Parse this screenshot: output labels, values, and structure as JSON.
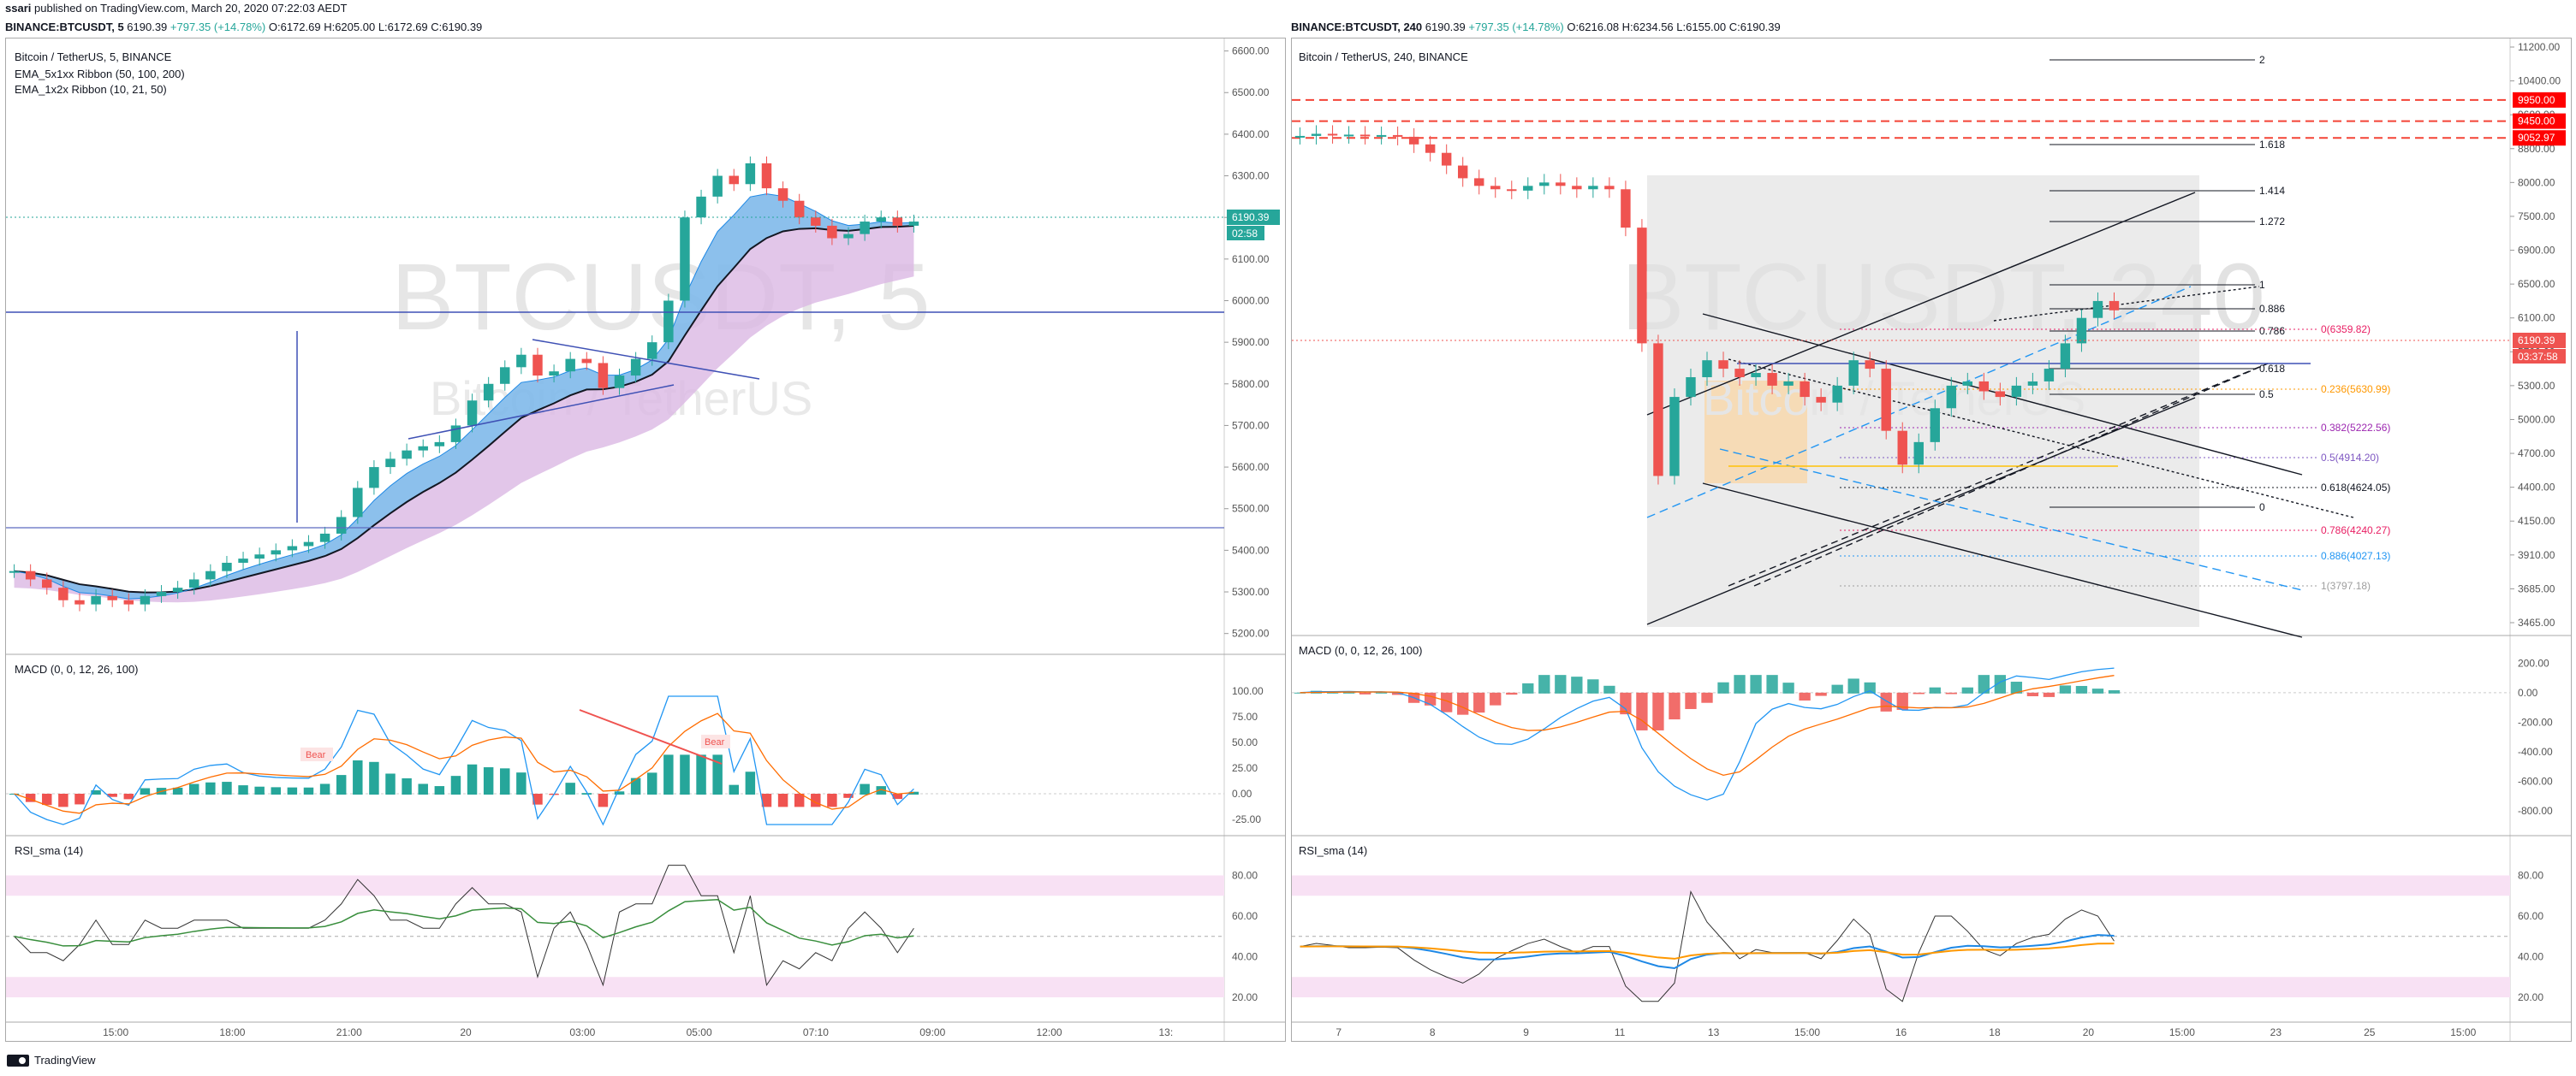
{
  "header": {
    "author": "ssari",
    "published_text": "published on TradingView.com, March 20, 2020 07:22:03 AEDT"
  },
  "left_chart": {
    "symbol_line": {
      "symbol": "BINANCE:BTCUSDT, 5",
      "last": "6190.39",
      "change": "+797.35 (+14.78%)",
      "o": "O:6172.69",
      "h": "H:6205.00",
      "l": "L:6172.69",
      "c": "C:6190.39"
    },
    "pane_title": "Bitcoin / TetherUS, 5, BINANCE",
    "indicators": [
      "EMA_5x1xx Ribbon  (50, 100, 200)",
      "EMA_1x2x Ribbon  (10, 21, 50)"
    ],
    "watermark_main": "BTCUSDT, 5",
    "watermark_sub": "Bitcoin / TetherUS",
    "price_axis": [
      "6600.00",
      "6500.00",
      "6400.00",
      "6300.00",
      "6200.00",
      "6100.00",
      "6000.00",
      "5900.00",
      "5800.00",
      "5700.00",
      "5600.00",
      "5500.00",
      "5400.00",
      "5300.00",
      "5200.00"
    ],
    "price_ylim": [
      5150,
      6630
    ],
    "last_price_label": "6190.39",
    "countdown_label": "02:58",
    "time_axis": [
      "15:00",
      "18:00",
      "21:00",
      "20",
      "03:00",
      "05:00",
      "07:10",
      "09:00",
      "12:00",
      "13:"
    ],
    "macd": {
      "title": "MACD (0, 0, 12, 26, 100)",
      "axis": [
        "100.00",
        "75.00",
        "50.00",
        "25.00",
        "0.00",
        "-25.00"
      ],
      "ylim": [
        -35,
        115
      ],
      "labels": [
        "Bear",
        "Bear"
      ]
    },
    "rsi": {
      "title": "RSI_sma (14)",
      "axis": [
        "80.00",
        "60.00",
        "40.00",
        "20.00"
      ],
      "ylim": [
        12,
        92
      ]
    },
    "price_series": [
      5350,
      5330,
      5310,
      5280,
      5270,
      5290,
      5280,
      5270,
      5290,
      5300,
      5310,
      5330,
      5350,
      5370,
      5380,
      5390,
      5400,
      5410,
      5420,
      5440,
      5480,
      5550,
      5600,
      5620,
      5640,
      5650,
      5660,
      5700,
      5760,
      5800,
      5840,
      5870,
      5820,
      5830,
      5860,
      5850,
      5790,
      5820,
      5860,
      5900,
      6000,
      6200,
      6250,
      6300,
      6280,
      6330,
      6270,
      6240,
      6200,
      6180,
      6150,
      6160,
      6190,
      6200,
      6180,
      6190
    ]
  },
  "right_chart": {
    "symbol_line": {
      "symbol": "BINANCE:BTCUSDT, 240",
      "last": "6190.39",
      "change": "+797.35 (+14.78%)",
      "o": "O:6216.08",
      "h": "H:6234.56",
      "l": "L:6155.00",
      "c": "C:6190.39"
    },
    "pane_title": "Bitcoin / TetherUS, 240, BINANCE",
    "watermark_main": "BTCUSDT, 240",
    "watermark_sub": "Bitcoin / TetherUS",
    "price_axis": [
      "11200.00",
      "10400.00",
      "9600.00",
      "8800.00",
      "8000.00",
      "7500.00",
      "6900.00",
      "6500.00",
      "6100.00",
      "5700.00",
      "5300.00",
      "5000.00",
      "4700.00",
      "4400.00",
      "4150.00",
      "3910.00",
      "3685.00",
      "3465.00"
    ],
    "price_ylim": [
      3400,
      11600
    ],
    "red_levels": [
      {
        "label": "9950.00",
        "value": 9950
      },
      {
        "label": "9450.00",
        "value": 9450
      },
      {
        "label": "9052.97",
        "value": 9052.97
      }
    ],
    "last_price_label": "6190.39",
    "countdown_label": "03:37:58",
    "fib_ext_labels": [
      "2",
      "1.618",
      "1.414",
      "1.272",
      "1",
      "0.886",
      "0.786",
      "0.618",
      "0.5",
      "0"
    ],
    "fib_ret_labels": [
      {
        "text": "0(6359.82)",
        "color": "#e91e63"
      },
      {
        "text": "0.236(5630.99)",
        "color": "#ff9800"
      },
      {
        "text": "0.382(5222.56)",
        "color": "#9c27b0"
      },
      {
        "text": "0.5(4914.20)",
        "color": "#7e57c2"
      },
      {
        "text": "0.618(4624.05)",
        "color": "#131722"
      },
      {
        "text": "0.786(4240.27)",
        "color": "#e91e63"
      },
      {
        "text": "0.886(4027.13)",
        "color": "#2196f3"
      },
      {
        "text": "1(3797.18)",
        "color": "#9e9e9e"
      }
    ],
    "time_axis": [
      "7",
      "8",
      "9",
      "11",
      "13",
      "15:00",
      "16",
      "18",
      "20",
      "15:00",
      "23",
      "25",
      "15:00"
    ],
    "macd": {
      "title": "MACD (0, 0, 12, 26, 100)",
      "axis": [
        "200.00",
        "0.00",
        "-200.00",
        "-400.00",
        "-600.00",
        "-800.00"
      ],
      "ylim": [
        -900,
        260
      ]
    },
    "rsi": {
      "title": "RSI_sma (14)",
      "axis": [
        "80.00",
        "60.00",
        "40.00",
        "20.00"
      ],
      "ylim": [
        12,
        92
      ]
    },
    "price_series": [
      9100,
      9150,
      9120,
      9130,
      9100,
      9120,
      9080,
      8900,
      8700,
      8400,
      8100,
      7950,
      7900,
      7880,
      7950,
      8000,
      7950,
      7900,
      7950,
      7900,
      7300,
      5800,
      4500,
      5200,
      5400,
      5600,
      5500,
      5400,
      5450,
      5300,
      5350,
      5200,
      5150,
      5300,
      5600,
      5500,
      4900,
      4600,
      4800,
      5100,
      5300,
      5350,
      5250,
      5200,
      5300,
      5350,
      5500,
      5800,
      6100,
      6300,
      6190
    ]
  },
  "footer": {
    "brand": "TradingView"
  }
}
